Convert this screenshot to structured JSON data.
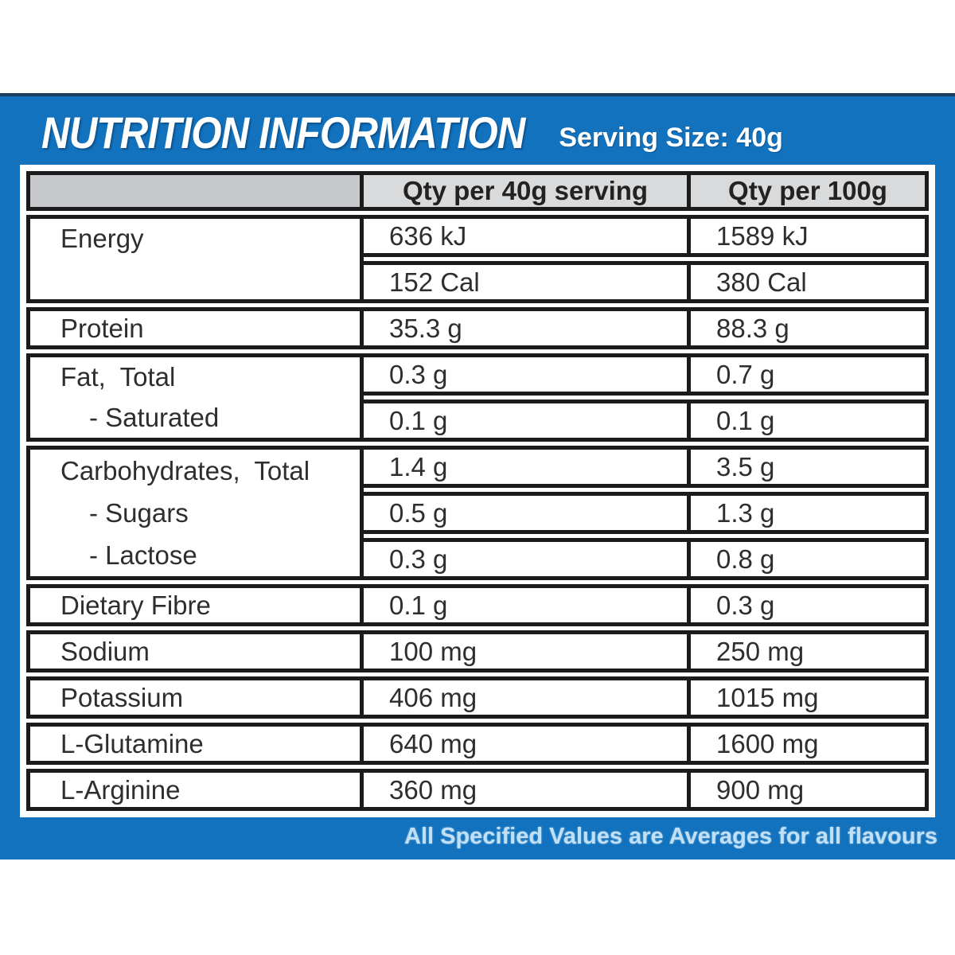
{
  "header": {
    "title": "NUTRITION INFORMATION",
    "serving": "Serving Size: 40g"
  },
  "table": {
    "col_headers": [
      "",
      "Qty per 40g serving",
      "Qty per 100g"
    ],
    "groups": [
      {
        "labels": [
          "Energy",
          ""
        ],
        "rows": [
          [
            "636 kJ",
            "1589 kJ"
          ],
          [
            "152 Cal",
            "380 Cal"
          ]
        ]
      },
      {
        "labels": [
          "Protein"
        ],
        "rows": [
          [
            "35.3 g",
            "88.3 g"
          ]
        ]
      },
      {
        "labels": [
          "Fat,  Total",
          "- Saturated"
        ],
        "rows": [
          [
            "0.3 g",
            "0.7 g"
          ],
          [
            "0.1 g",
            "0.1 g"
          ]
        ]
      },
      {
        "labels": [
          "Carbohydrates,  Total",
          "- Sugars",
          "- Lactose"
        ],
        "rows": [
          [
            "1.4 g",
            "3.5 g"
          ],
          [
            "0.5 g",
            "1.3 g"
          ],
          [
            "0.3 g",
            "0.8 g"
          ]
        ]
      },
      {
        "labels": [
          "Dietary Fibre"
        ],
        "rows": [
          [
            "0.1 g",
            "0.3 g"
          ]
        ]
      },
      {
        "labels": [
          "Sodium"
        ],
        "rows": [
          [
            "100 mg",
            "250 mg"
          ]
        ]
      },
      {
        "labels": [
          "Potassium"
        ],
        "rows": [
          [
            "406 mg",
            "1015 mg"
          ]
        ]
      },
      {
        "labels": [
          "L-Glutamine"
        ],
        "rows": [
          [
            "640 mg",
            "1600 mg"
          ]
        ]
      },
      {
        "labels": [
          "L-Arginine"
        ],
        "rows": [
          [
            "360 mg",
            "900 mg"
          ]
        ]
      }
    ]
  },
  "footer": {
    "note": "All Specified Values are Averages for all flavours"
  },
  "colors": {
    "panel_blue": "#1272bd",
    "panel_top_line": "#1e3c5e",
    "border_black": "#1b1b1b",
    "header_gray": "#d9dadc",
    "header_gray_dark": "#c7c8cc",
    "text_dark": "#2e2e2e",
    "footnote_blue": "#bfe0f6",
    "title_white": "#ffffff"
  }
}
